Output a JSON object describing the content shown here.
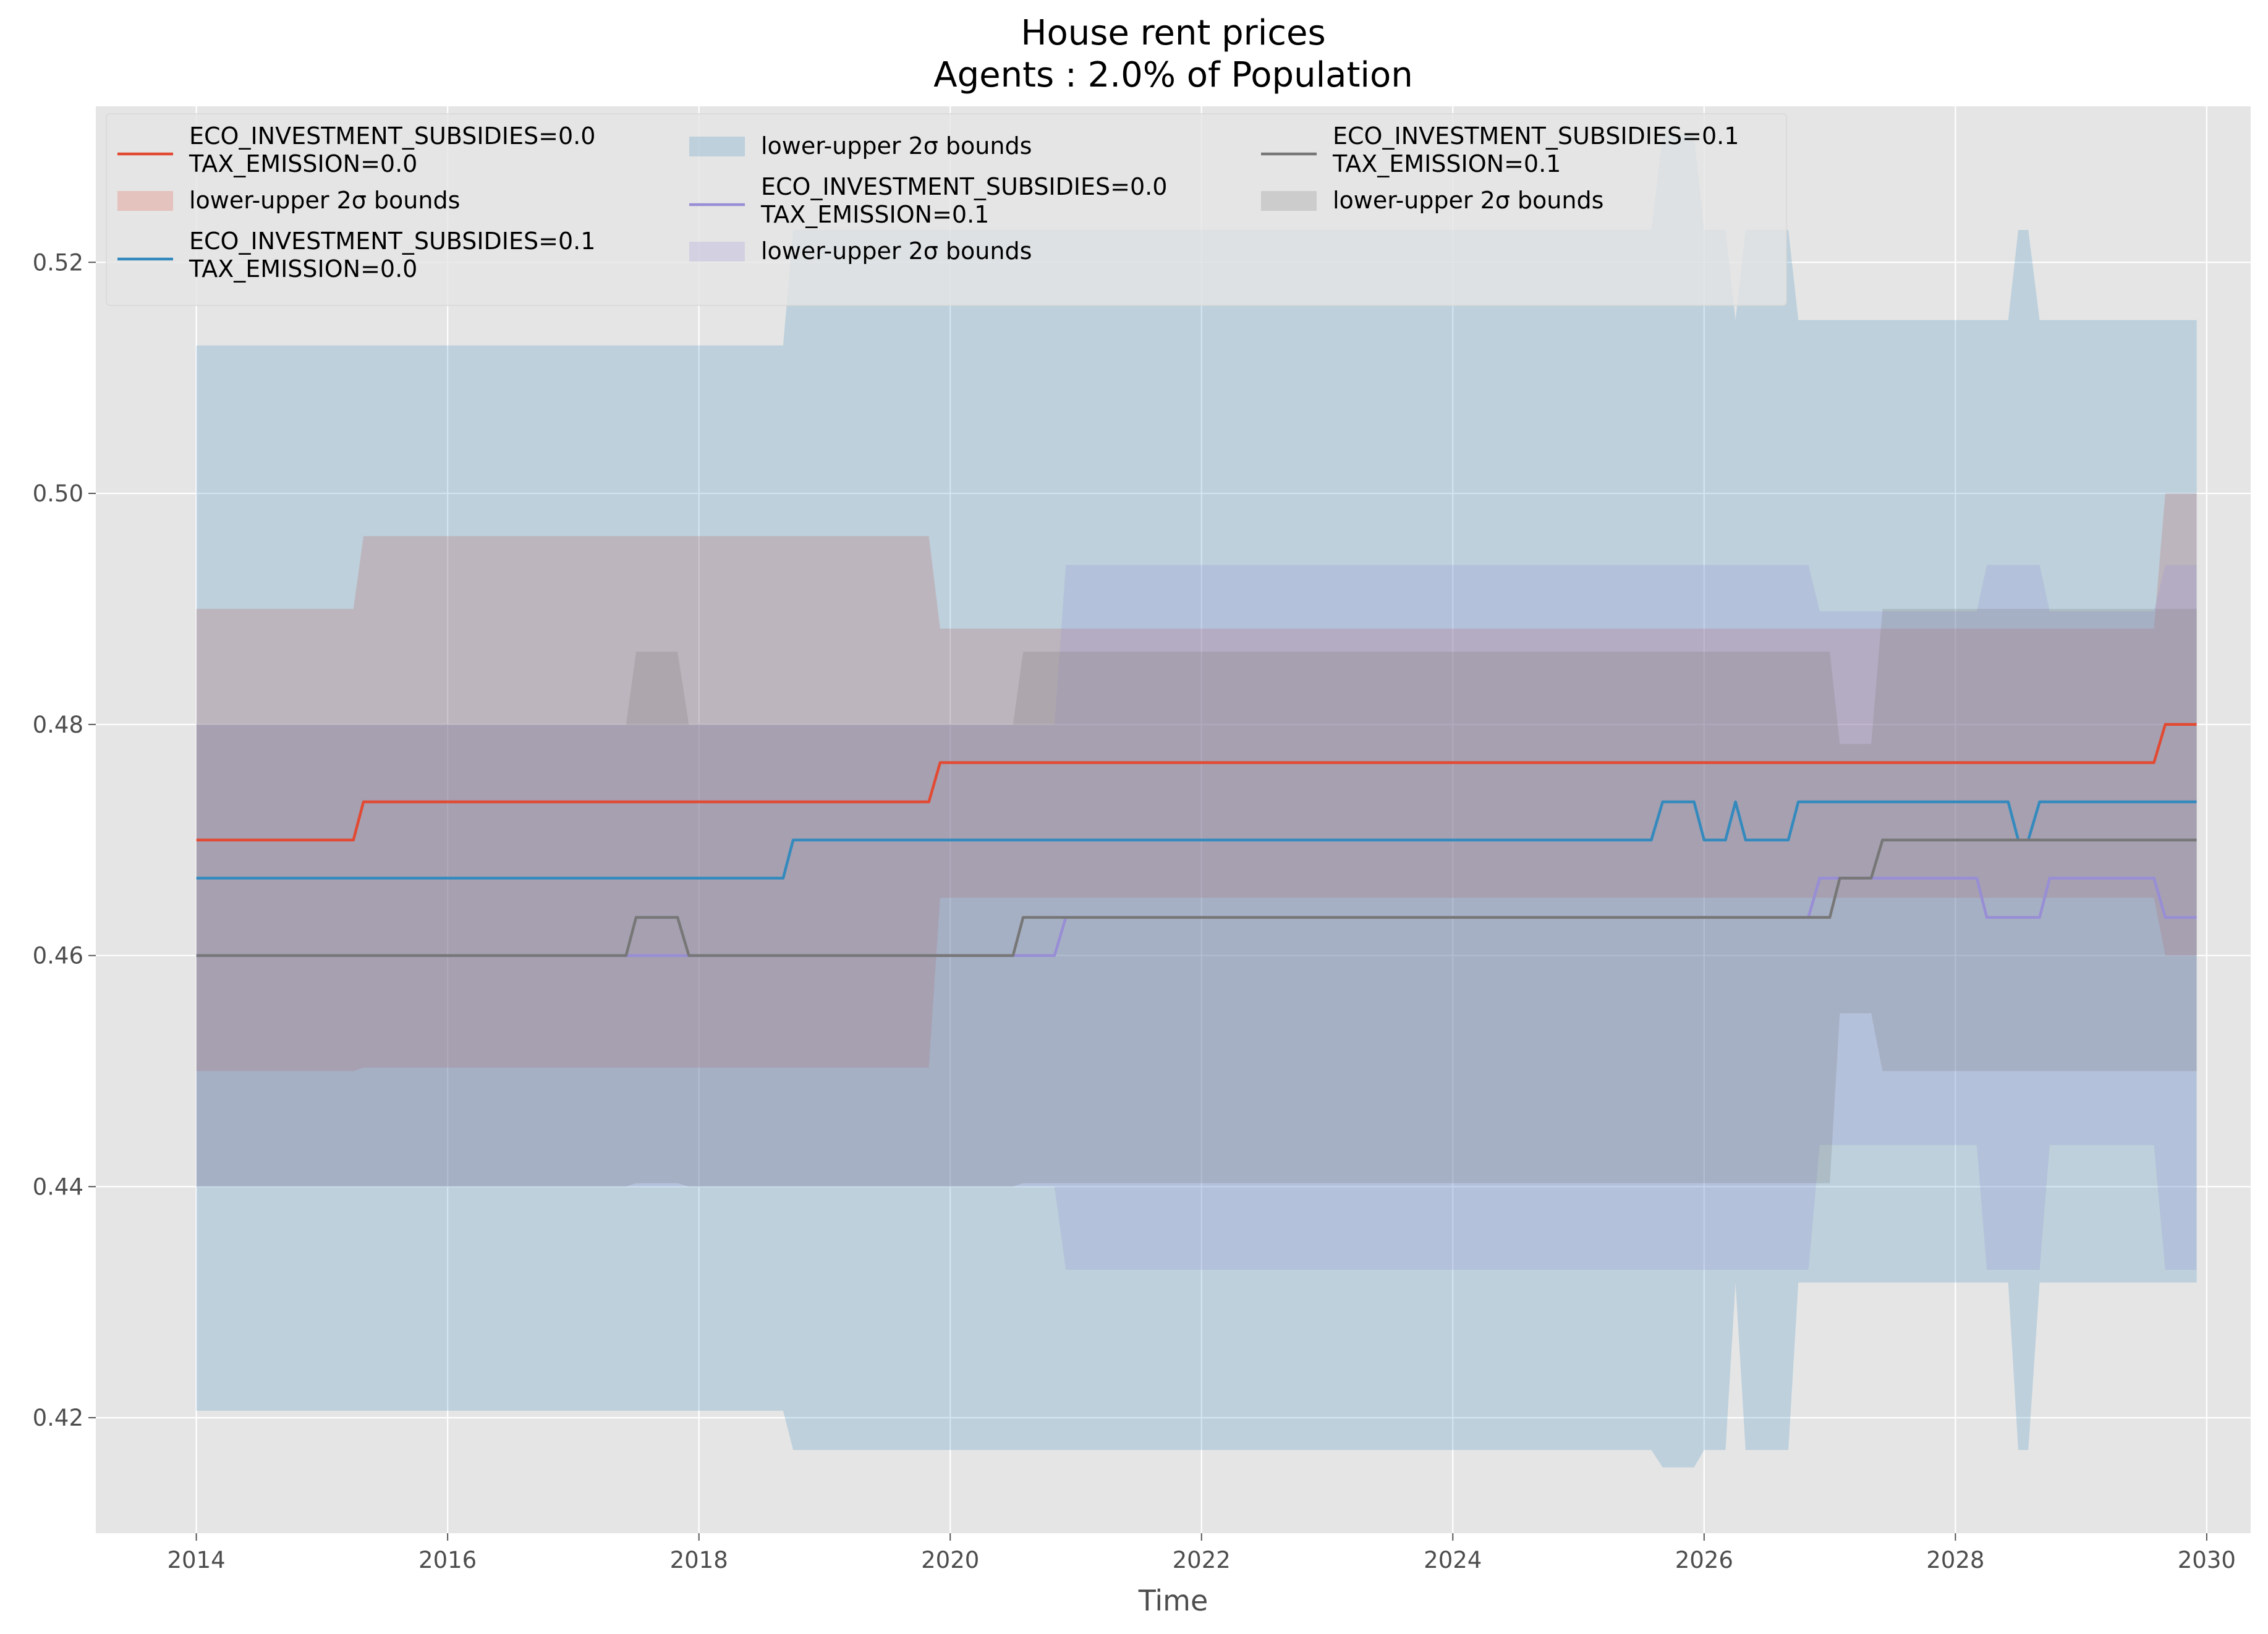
{
  "chart_data": {
    "type": "line",
    "title": [
      "House rent prices",
      "Agents : 2.0% of Population"
    ],
    "xlabel": "Time",
    "ylabel": "",
    "xlim": [
      2013.2,
      2030.35
    ],
    "ylim": [
      0.41,
      0.5335
    ],
    "x_ticks": [
      2014,
      2016,
      2018,
      2020,
      2022,
      2024,
      2026,
      2028,
      2030
    ],
    "y_ticks": [
      0.42,
      0.44,
      0.46,
      0.48,
      0.5,
      0.52
    ],
    "x_tick_labels": [
      "2014",
      "2016",
      "2018",
      "2020",
      "2022",
      "2024",
      "2026",
      "2028",
      "2030"
    ],
    "y_tick_labels": [
      "0.42",
      "0.44",
      "0.46",
      "0.48",
      "0.50",
      "0.52"
    ],
    "grid": true,
    "legend_position": "top-left, 3 columns",
    "band_label": "lower-upper 2σ bounds",
    "series": [
      {
        "name": [
          "ECO_INVESTMENT_SUBSIDIES=0.0",
          "TAX_EMISSION=0.0"
        ],
        "color": "#E24A33",
        "line": [
          [
            2014.0,
            0.47
          ],
          [
            2015.25,
            0.47
          ],
          [
            2015.33,
            0.4733
          ],
          [
            2019.83,
            0.4733
          ],
          [
            2019.92,
            0.4767
          ],
          [
            2029.58,
            0.4767
          ],
          [
            2029.67,
            0.48
          ],
          [
            2029.92,
            0.48
          ]
        ],
        "band_upper": [
          [
            2014.0,
            0.49
          ],
          [
            2015.25,
            0.49
          ],
          [
            2015.33,
            0.4963
          ],
          [
            2019.83,
            0.4963
          ],
          [
            2019.92,
            0.4883
          ],
          [
            2029.58,
            0.4883
          ],
          [
            2029.67,
            0.5
          ],
          [
            2029.92,
            0.5
          ]
        ],
        "band_lower": [
          [
            2014.0,
            0.45
          ],
          [
            2015.25,
            0.45
          ],
          [
            2015.33,
            0.4503
          ],
          [
            2019.83,
            0.4503
          ],
          [
            2019.92,
            0.465
          ],
          [
            2029.58,
            0.465
          ],
          [
            2029.67,
            0.46
          ],
          [
            2029.92,
            0.46
          ]
        ]
      },
      {
        "name": [
          "ECO_INVESTMENT_SUBSIDIES=0.1",
          "TAX_EMISSION=0.0"
        ],
        "color": "#348ABD",
        "line": [
          [
            2014.0,
            0.4667
          ],
          [
            2018.67,
            0.4667
          ],
          [
            2018.75,
            0.47
          ],
          [
            2025.58,
            0.47
          ],
          [
            2025.67,
            0.4733
          ],
          [
            2025.92,
            0.4733
          ],
          [
            2026.0,
            0.47
          ],
          [
            2026.17,
            0.47
          ],
          [
            2026.25,
            0.4733
          ],
          [
            2026.33,
            0.47
          ],
          [
            2026.67,
            0.47
          ],
          [
            2026.75,
            0.4733
          ],
          [
            2028.42,
            0.4733
          ],
          [
            2028.5,
            0.47
          ],
          [
            2028.58,
            0.47
          ],
          [
            2028.67,
            0.4733
          ],
          [
            2029.92,
            0.4733
          ]
        ],
        "band_upper": [
          [
            2014.0,
            0.5128
          ],
          [
            2018.67,
            0.5128
          ],
          [
            2018.75,
            0.5228
          ],
          [
            2025.58,
            0.5228
          ],
          [
            2025.67,
            0.531
          ],
          [
            2025.92,
            0.531
          ],
          [
            2026.0,
            0.5228
          ],
          [
            2026.17,
            0.5228
          ],
          [
            2026.25,
            0.515
          ],
          [
            2026.33,
            0.5228
          ],
          [
            2026.67,
            0.5228
          ],
          [
            2026.75,
            0.515
          ],
          [
            2028.42,
            0.515
          ],
          [
            2028.5,
            0.5228
          ],
          [
            2028.58,
            0.5228
          ],
          [
            2028.67,
            0.515
          ],
          [
            2029.92,
            0.515
          ]
        ],
        "band_lower": [
          [
            2014.0,
            0.4206
          ],
          [
            2018.67,
            0.4206
          ],
          [
            2018.75,
            0.4172
          ],
          [
            2025.58,
            0.4172
          ],
          [
            2025.67,
            0.4157
          ],
          [
            2025.92,
            0.4157
          ],
          [
            2026.0,
            0.4172
          ],
          [
            2026.17,
            0.4172
          ],
          [
            2026.25,
            0.4317
          ],
          [
            2026.33,
            0.4172
          ],
          [
            2026.67,
            0.4172
          ],
          [
            2026.75,
            0.4317
          ],
          [
            2028.42,
            0.4317
          ],
          [
            2028.5,
            0.4172
          ],
          [
            2028.58,
            0.4172
          ],
          [
            2028.67,
            0.4317
          ],
          [
            2029.92,
            0.4317
          ]
        ]
      },
      {
        "name": [
          "ECO_INVESTMENT_SUBSIDIES=0.0",
          "TAX_EMISSION=0.1"
        ],
        "color": "#988ED5",
        "line": [
          [
            2014.0,
            0.46
          ],
          [
            2020.5,
            0.46
          ],
          [
            2020.83,
            0.46
          ],
          [
            2020.92,
            0.4633
          ],
          [
            2026.83,
            0.4633
          ],
          [
            2026.92,
            0.4667
          ],
          [
            2028.17,
            0.4667
          ],
          [
            2028.25,
            0.4633
          ],
          [
            2028.67,
            0.4633
          ],
          [
            2028.75,
            0.4667
          ],
          [
            2029.58,
            0.4667
          ],
          [
            2029.67,
            0.4633
          ],
          [
            2029.92,
            0.4633
          ]
        ],
        "band_upper": [
          [
            2014.0,
            0.48
          ],
          [
            2020.83,
            0.48
          ],
          [
            2020.92,
            0.4938
          ],
          [
            2026.83,
            0.4938
          ],
          [
            2026.92,
            0.4898
          ],
          [
            2028.17,
            0.4898
          ],
          [
            2028.25,
            0.4938
          ],
          [
            2028.67,
            0.4938
          ],
          [
            2028.75,
            0.4898
          ],
          [
            2029.58,
            0.4898
          ],
          [
            2029.67,
            0.4938
          ],
          [
            2029.92,
            0.4938
          ]
        ],
        "band_lower": [
          [
            2014.0,
            0.44
          ],
          [
            2020.83,
            0.44
          ],
          [
            2020.92,
            0.4328
          ],
          [
            2026.83,
            0.4328
          ],
          [
            2026.92,
            0.4436
          ],
          [
            2028.17,
            0.4436
          ],
          [
            2028.25,
            0.4328
          ],
          [
            2028.67,
            0.4328
          ],
          [
            2028.75,
            0.4436
          ],
          [
            2029.58,
            0.4436
          ],
          [
            2029.67,
            0.4328
          ],
          [
            2029.92,
            0.4328
          ]
        ]
      },
      {
        "name": [
          "ECO_INVESTMENT_SUBSIDIES=0.1",
          "TAX_EMISSION=0.1"
        ],
        "color": "#777777",
        "line": [
          [
            2014.0,
            0.46
          ],
          [
            2017.42,
            0.46
          ],
          [
            2017.5,
            0.4633
          ],
          [
            2017.83,
            0.4633
          ],
          [
            2017.92,
            0.46
          ],
          [
            2020.5,
            0.46
          ],
          [
            2020.58,
            0.4633
          ],
          [
            2027.0,
            0.4633
          ],
          [
            2027.08,
            0.4667
          ],
          [
            2027.33,
            0.4667
          ],
          [
            2027.42,
            0.47
          ],
          [
            2029.92,
            0.47
          ]
        ],
        "band_upper": [
          [
            2014.0,
            0.48
          ],
          [
            2017.42,
            0.48
          ],
          [
            2017.5,
            0.4863
          ],
          [
            2017.83,
            0.4863
          ],
          [
            2017.92,
            0.48
          ],
          [
            2020.5,
            0.48
          ],
          [
            2020.58,
            0.4863
          ],
          [
            2027.0,
            0.4863
          ],
          [
            2027.08,
            0.4783
          ],
          [
            2027.33,
            0.4783
          ],
          [
            2027.42,
            0.49
          ],
          [
            2029.92,
            0.49
          ]
        ],
        "band_lower": [
          [
            2014.0,
            0.44
          ],
          [
            2017.42,
            0.44
          ],
          [
            2017.5,
            0.4403
          ],
          [
            2017.83,
            0.4403
          ],
          [
            2017.92,
            0.44
          ],
          [
            2020.5,
            0.44
          ],
          [
            2020.58,
            0.4403
          ],
          [
            2027.0,
            0.4403
          ],
          [
            2027.08,
            0.455
          ],
          [
            2027.33,
            0.455
          ],
          [
            2027.42,
            0.45
          ],
          [
            2029.92,
            0.45
          ]
        ]
      }
    ]
  }
}
